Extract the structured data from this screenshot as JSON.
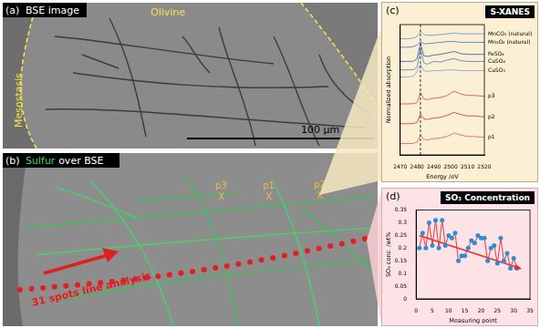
{
  "panels": {
    "a": {
      "label": "(a)",
      "title": "BSE image",
      "regions": [
        "Olivine",
        "Mesostasis"
      ],
      "scale_bar": "100 μm"
    },
    "b": {
      "label": "(b)",
      "title": [
        "Sulfur",
        "over BSE"
      ],
      "spots": [
        {
          "label": "p3",
          "mark": "X"
        },
        {
          "label": "p1",
          "mark": "X"
        },
        {
          "label": "p2",
          "mark": "X"
        }
      ],
      "line_analysis": "31 spots line analysis"
    },
    "c": {
      "label": "(c)"
    },
    "d": {
      "label": "(d)"
    }
  },
  "chart_data": [
    {
      "type": "line",
      "title": "S-XANES",
      "x_label": "Energy /eV",
      "y_label": "Normalized absorption",
      "x": [
        2470,
        2474,
        2478,
        2480,
        2482,
        2484,
        2486,
        2490,
        2494,
        2498,
        2502,
        2506,
        2510,
        2514,
        2518,
        2520
      ],
      "xlim": [
        2470,
        2520
      ],
      "xticks": [
        2470,
        2480,
        2490,
        2500,
        2510,
        2520
      ],
      "ylim": [
        0,
        9.2
      ],
      "tick_labels": "x",
      "grid": false,
      "reference_line": {
        "x": 2482,
        "line_style": "dashed"
      },
      "series": [
        {
          "name": "MnCO₃ (natural)",
          "color": "#7aa6d6",
          "values": [
            8.2,
            8.2,
            8.25,
            8.35,
            8.7,
            8.5,
            8.45,
            8.45,
            8.5,
            8.55,
            8.6,
            8.55,
            8.55,
            8.55,
            8.55,
            8.55
          ]
        },
        {
          "name": "Mn₃O₄ (natural)",
          "color": "#5b8fcf",
          "values": [
            7.6,
            7.6,
            7.65,
            7.75,
            8.0,
            7.85,
            7.85,
            7.9,
            7.95,
            8.0,
            8.0,
            7.95,
            7.95,
            7.95,
            7.95,
            7.95
          ]
        },
        {
          "name": "FeSO₄",
          "color": "#4a78b8",
          "values": [
            6.6,
            6.6,
            6.62,
            6.8,
            7.9,
            7.0,
            6.95,
            7.05,
            7.1,
            7.2,
            7.3,
            7.15,
            7.1,
            7.1,
            7.1,
            7.1
          ]
        },
        {
          "name": "CaSO₄",
          "color": "#6d8fc4",
          "values": [
            6.0,
            6.0,
            6.02,
            6.2,
            7.5,
            6.5,
            6.4,
            6.6,
            6.55,
            6.7,
            6.8,
            6.65,
            6.6,
            6.6,
            6.6,
            6.6
          ]
        },
        {
          "name": "CaSO₃",
          "color": "#8fb0dc",
          "values": [
            5.5,
            5.5,
            5.55,
            5.9,
            6.4,
            5.95,
            5.9,
            5.95,
            5.95,
            6.0,
            6.0,
            5.95,
            5.95,
            5.95,
            5.95,
            5.95
          ]
        },
        {
          "name": "p3",
          "color": "#e0607a",
          "values": [
            3.6,
            3.6,
            3.62,
            3.7,
            4.4,
            3.95,
            3.9,
            4.0,
            4.05,
            4.2,
            4.5,
            4.3,
            4.2,
            4.2,
            4.15,
            4.15
          ]
        },
        {
          "name": "p2",
          "color": "#d94f6b",
          "values": [
            2.2,
            2.2,
            2.22,
            2.3,
            2.9,
            2.55,
            2.5,
            2.6,
            2.65,
            2.8,
            3.0,
            2.85,
            2.75,
            2.75,
            2.7,
            2.7
          ]
        },
        {
          "name": "p1",
          "color": "#e2708a",
          "values": [
            0.8,
            0.8,
            0.82,
            0.9,
            1.4,
            1.1,
            1.05,
            1.15,
            1.2,
            1.3,
            1.55,
            1.4,
            1.3,
            1.3,
            1.25,
            1.25
          ]
        }
      ]
    },
    {
      "type": "scatter",
      "title": "SO₃ Concentration",
      "x_label": "Measuring point",
      "y_label": "SO₃ conc. /wt%",
      "x": [
        1,
        2,
        3,
        4,
        5,
        6,
        7,
        8,
        9,
        10,
        11,
        12,
        13,
        14,
        15,
        16,
        17,
        18,
        19,
        20,
        21,
        22,
        23,
        24,
        25,
        26,
        27,
        28,
        29,
        30,
        31
      ],
      "xlim": [
        0,
        35
      ],
      "xticks": [
        0,
        5,
        10,
        15,
        20,
        25,
        30,
        35
      ],
      "ylim": [
        0,
        0.35
      ],
      "yticks": [
        0,
        0.05,
        0.1,
        0.15,
        0.2,
        0.25,
        0.3,
        0.35
      ],
      "grid": false,
      "series": [
        {
          "type": "scatter",
          "color": "#2a8fd4",
          "marker": "circle",
          "values": [
            0.2,
            0.26,
            0.2,
            0.3,
            0.21,
            0.31,
            0.2,
            0.31,
            0.21,
            0.25,
            0.24,
            0.26,
            0.15,
            0.17,
            0.17,
            0.2,
            0.23,
            0.22,
            0.25,
            0.24,
            0.24,
            0.15,
            0.2,
            0.21,
            0.14,
            0.24,
            0.15,
            0.18,
            0.12,
            0.16,
            0.12
          ]
        },
        {
          "type": "line",
          "color": "#e8383d",
          "values": [
            0.2,
            0.26,
            0.2,
            0.3,
            0.21,
            0.31,
            0.2,
            0.31,
            0.21,
            0.25,
            0.24,
            0.26,
            0.15,
            0.17,
            0.17,
            0.2,
            0.23,
            0.22,
            0.25,
            0.24,
            0.24,
            0.15,
            0.2,
            0.21,
            0.14,
            0.24,
            0.15,
            0.18,
            0.12,
            0.16,
            0.12
          ]
        },
        {
          "type": "line",
          "color": "#e03030",
          "marker": "arrow",
          "x": [
            1,
            32
          ],
          "values": [
            0.25,
            0.12
          ]
        }
      ]
    }
  ]
}
